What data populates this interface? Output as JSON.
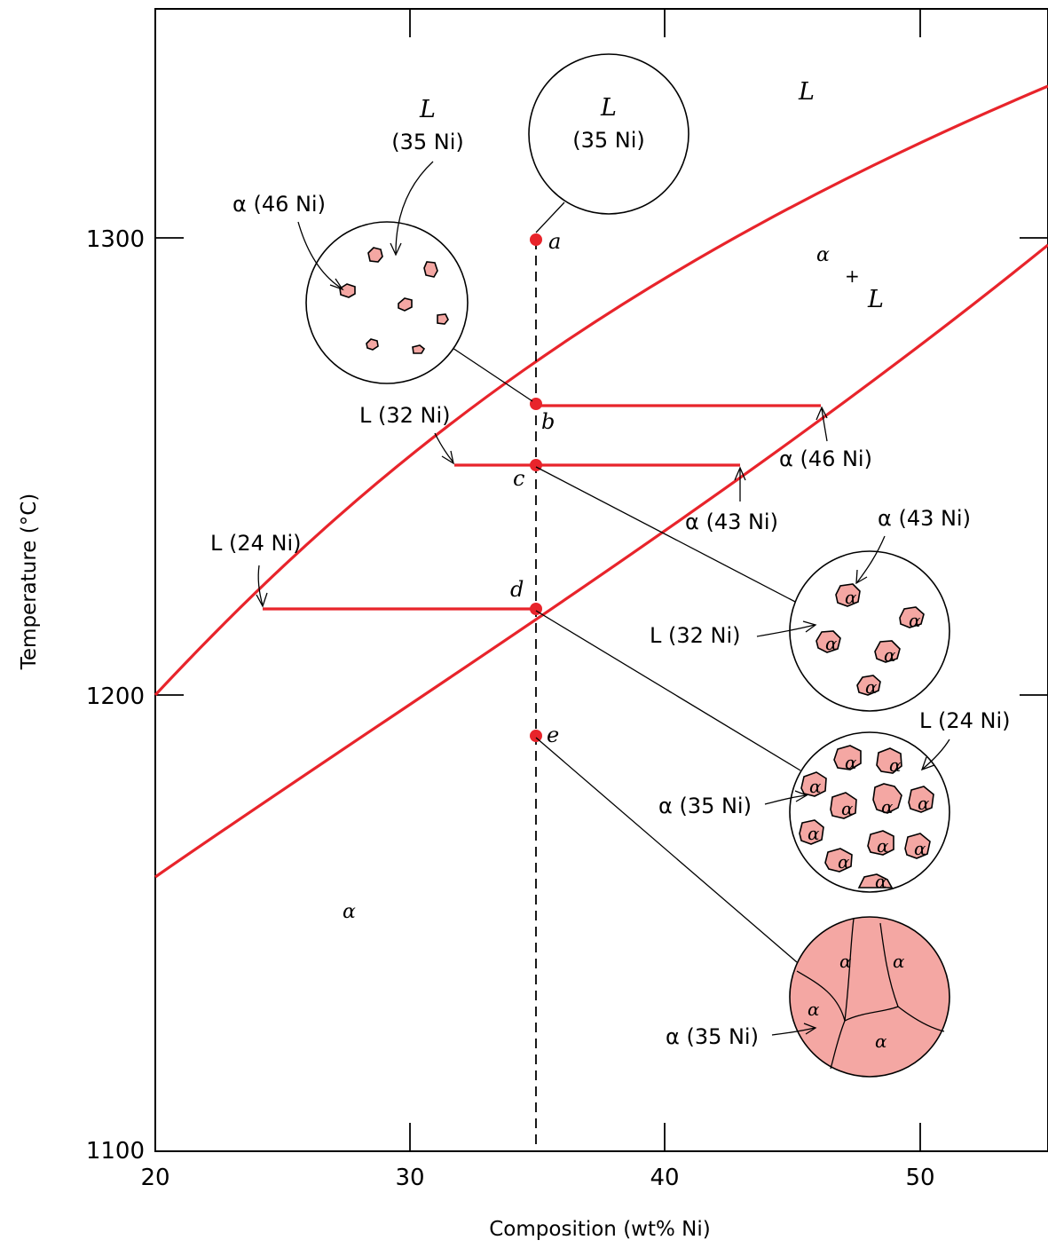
{
  "axes": {
    "x_label": "Composition (wt% Ni)",
    "y_label": "Temperature (°C)",
    "x_ticks": [
      "20",
      "30",
      "40",
      "50"
    ],
    "y_ticks": [
      "1300",
      "1200",
      "1100"
    ]
  },
  "phase_labels": {
    "liquid_region": "L",
    "two_phase_alpha": "α",
    "two_phase_plus": "+",
    "two_phase_L": "L",
    "solid_region": "α"
  },
  "points": {
    "a": "a",
    "b": "b",
    "c": "c",
    "d": "d",
    "e": "e"
  },
  "composition_labels": {
    "L35_top_L": "L",
    "L35_top_comp": "(35 Ni)",
    "L35_left_L": "L",
    "L35_left_comp": "(35 Ni)",
    "alpha46_left": "α (46 Ni)",
    "L32_tie": "L (32 Ni)",
    "alpha46_tie": "α (46 Ni)",
    "alpha43_tie": "α (43 Ni)",
    "L24_tie": "L (24 Ni)",
    "alpha43_micro": "α (43 Ni)",
    "L32_micro": "L (32 Ni)",
    "L24_micro": "L (24 Ni)",
    "alpha35_micro": "α (35 Ni)",
    "alpha35_final": "α (35 Ni)"
  },
  "grain_symbol": "α",
  "colors": {
    "phase_boundary": "#e8242b",
    "grain_fill": "#f4a7a3"
  }
}
